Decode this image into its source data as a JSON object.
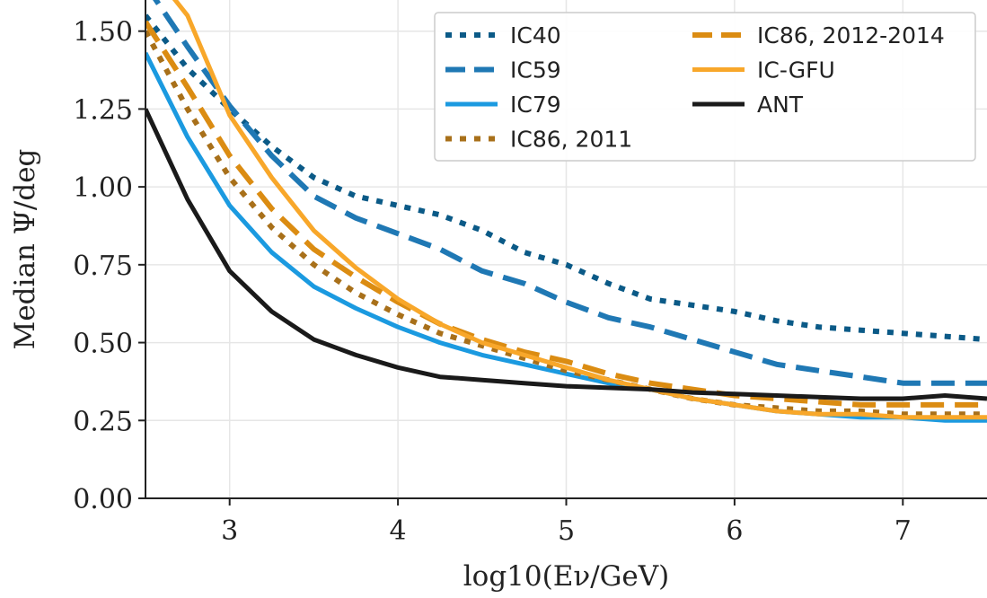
{
  "chart_data": {
    "type": "line",
    "xlabel": "log10(Eν/GeV)",
    "ylabel": "Median Ψ/deg",
    "xlim": [
      2.5,
      7.5
    ],
    "ylim": [
      0.0,
      1.6
    ],
    "x_ticks": [
      3,
      4,
      5,
      6,
      7
    ],
    "y_ticks": [
      0.0,
      0.25,
      0.5,
      0.75,
      1.0,
      1.25,
      1.5
    ],
    "x_tick_labels": [
      "3",
      "4",
      "5",
      "6",
      "7"
    ],
    "y_tick_labels": [
      "0.00",
      "0.25",
      "0.50",
      "0.75",
      "1.00",
      "1.25",
      "1.50"
    ],
    "grid": true,
    "legend_position": "top-right",
    "series": [
      {
        "name": "IC40",
        "color": "#0b5a87",
        "style": "dotted",
        "x": [
          2.5,
          2.75,
          3.0,
          3.25,
          3.5,
          3.75,
          4.0,
          4.25,
          4.5,
          4.75,
          5.0,
          5.25,
          5.5,
          5.75,
          6.0,
          6.25,
          6.5,
          6.75,
          7.0,
          7.25,
          7.5
        ],
        "y": [
          1.55,
          1.38,
          1.25,
          1.13,
          1.03,
          0.97,
          0.94,
          0.91,
          0.86,
          0.79,
          0.75,
          0.69,
          0.64,
          0.62,
          0.6,
          0.57,
          0.55,
          0.54,
          0.53,
          0.52,
          0.51
        ]
      },
      {
        "name": "IC59",
        "color": "#1f78b4",
        "style": "dashed",
        "x": [
          2.5,
          2.75,
          3.0,
          3.25,
          3.5,
          3.75,
          4.0,
          4.25,
          4.5,
          4.75,
          5.0,
          5.25,
          5.5,
          5.75,
          6.0,
          6.25,
          6.5,
          6.75,
          7.0,
          7.25,
          7.5
        ],
        "y": [
          1.65,
          1.45,
          1.26,
          1.1,
          0.97,
          0.9,
          0.85,
          0.8,
          0.73,
          0.69,
          0.63,
          0.58,
          0.55,
          0.51,
          0.47,
          0.43,
          0.41,
          0.39,
          0.37,
          0.37,
          0.37
        ]
      },
      {
        "name": "IC79",
        "color": "#1b9ae0",
        "style": "solid",
        "x": [
          2.5,
          2.75,
          3.0,
          3.25,
          3.5,
          3.75,
          4.0,
          4.25,
          4.5,
          4.75,
          5.0,
          5.25,
          5.5,
          5.75,
          6.0,
          6.25,
          6.5,
          6.75,
          7.0,
          7.25,
          7.5
        ],
        "y": [
          1.43,
          1.16,
          0.94,
          0.79,
          0.68,
          0.61,
          0.55,
          0.5,
          0.46,
          0.43,
          0.4,
          0.37,
          0.35,
          0.32,
          0.3,
          0.28,
          0.27,
          0.26,
          0.26,
          0.25,
          0.25
        ]
      },
      {
        "name": "IC86, 2011",
        "color": "#a8701a",
        "style": "dotted",
        "x": [
          2.5,
          2.75,
          3.0,
          3.25,
          3.5,
          3.75,
          4.0,
          4.25,
          4.5,
          4.75,
          5.0,
          5.25,
          5.5,
          5.75,
          6.0,
          6.25,
          6.5,
          6.75,
          7.0,
          7.25,
          7.5
        ],
        "y": [
          1.5,
          1.25,
          1.03,
          0.87,
          0.75,
          0.66,
          0.59,
          0.53,
          0.49,
          0.45,
          0.41,
          0.38,
          0.35,
          0.32,
          0.3,
          0.29,
          0.28,
          0.28,
          0.27,
          0.27,
          0.27
        ]
      },
      {
        "name": "IC86, 2012-2014",
        "color": "#db8c12",
        "style": "dashed",
        "x": [
          2.5,
          2.75,
          3.0,
          3.25,
          3.5,
          3.75,
          4.0,
          4.25,
          4.5,
          4.75,
          5.0,
          5.25,
          5.5,
          5.75,
          6.0,
          6.25,
          6.5,
          6.75,
          7.0,
          7.25,
          7.5
        ],
        "y": [
          1.53,
          1.32,
          1.1,
          0.93,
          0.8,
          0.71,
          0.63,
          0.56,
          0.51,
          0.47,
          0.44,
          0.4,
          0.37,
          0.35,
          0.33,
          0.32,
          0.31,
          0.3,
          0.3,
          0.3,
          0.3
        ]
      },
      {
        "name": "IC-GFU",
        "color": "#f8a72a",
        "style": "solid",
        "x": [
          2.5,
          2.75,
          3.0,
          3.25,
          3.5,
          3.75,
          4.0,
          4.25,
          4.5,
          4.75,
          5.0,
          5.25,
          5.5,
          5.75,
          6.0,
          6.25,
          6.5,
          6.75,
          7.0,
          7.25,
          7.5
        ],
        "y": [
          1.72,
          1.55,
          1.23,
          1.03,
          0.86,
          0.74,
          0.64,
          0.56,
          0.5,
          0.46,
          0.42,
          0.38,
          0.35,
          0.32,
          0.3,
          0.28,
          0.27,
          0.27,
          0.26,
          0.26,
          0.26
        ]
      },
      {
        "name": "ANT",
        "color": "#1a1a1a",
        "style": "solid",
        "x": [
          2.5,
          2.75,
          3.0,
          3.25,
          3.5,
          3.75,
          4.0,
          4.25,
          4.5,
          4.75,
          5.0,
          5.25,
          5.5,
          5.75,
          6.0,
          6.25,
          6.5,
          6.75,
          7.0,
          7.25,
          7.5
        ],
        "y": [
          1.25,
          0.96,
          0.73,
          0.6,
          0.51,
          0.46,
          0.42,
          0.39,
          0.38,
          0.37,
          0.36,
          0.355,
          0.35,
          0.34,
          0.335,
          0.33,
          0.325,
          0.32,
          0.32,
          0.33,
          0.32
        ]
      }
    ]
  }
}
